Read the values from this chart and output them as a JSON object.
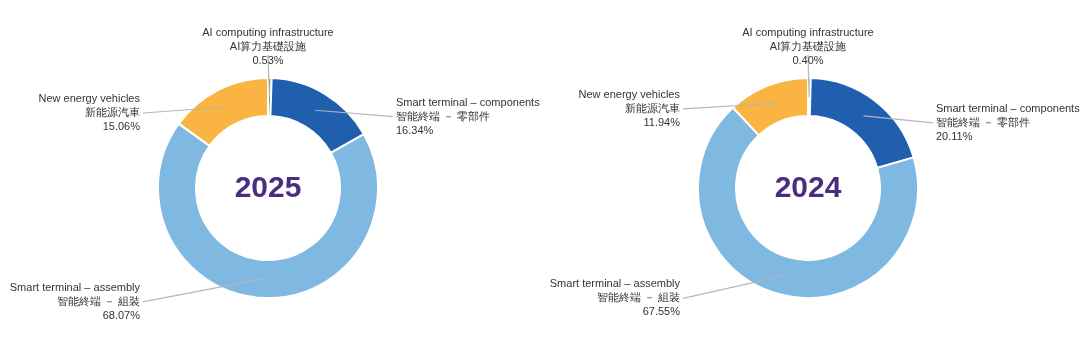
{
  "chart_data": [
    {
      "type": "donut",
      "title": "2025",
      "categories": [
        "AI computing infrastructure\nAI算力基礎設施",
        "Smart terminal – components\n智能終端 － 零部件",
        "Smart terminal – assembly\n智能終端 － 組裝",
        "New energy vehicles\n新能源汽車"
      ],
      "values": [
        0.53,
        16.34,
        68.07,
        15.06
      ],
      "value_labels": [
        "0.53%",
        "16.34%",
        "68.07%",
        "15.06%"
      ],
      "colors": [
        "#4e9a3c",
        "#1f5fae",
        "#7fb8e1",
        "#f9b441"
      ]
    },
    {
      "type": "donut",
      "title": "2024",
      "categories": [
        "AI computing infrastructure\nAI算力基礎設施",
        "Smart terminal – components\n智能終端 － 零部件",
        "Smart terminal – assembly\n智能終端 － 組裝",
        "New energy vehicles\n新能源汽車"
      ],
      "values": [
        0.4,
        20.11,
        67.55,
        11.94
      ],
      "value_labels": [
        "0.40%",
        "20.11%",
        "67.55%",
        "11.94%"
      ],
      "colors": [
        "#4e9a3c",
        "#1f5fae",
        "#7fb8e1",
        "#f9b441"
      ]
    }
  ]
}
